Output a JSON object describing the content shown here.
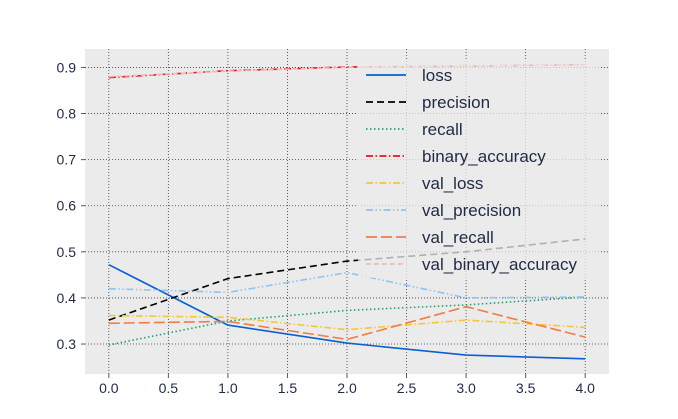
{
  "chart_data": {
    "type": "line",
    "title": "",
    "xlabel": "",
    "ylabel": "",
    "xlim": [
      -0.2,
      4.2
    ],
    "ylim": [
      0.235,
      0.94
    ],
    "x": [
      0.0,
      1.0,
      2.0,
      3.0,
      4.0
    ],
    "xticks": [
      0.0,
      0.5,
      1.0,
      1.5,
      2.0,
      2.5,
      3.0,
      3.5,
      4.0
    ],
    "xtick_labels": [
      "0.0",
      "0.5",
      "1.0",
      "1.5",
      "2.0",
      "2.5",
      "3.0",
      "3.5",
      "4.0"
    ],
    "yticks": [
      0.3,
      0.4,
      0.5,
      0.6,
      0.7,
      0.8,
      0.9
    ],
    "ytick_labels": [
      "0.3",
      "0.4",
      "0.5",
      "0.6",
      "0.7",
      "0.8",
      "0.9"
    ],
    "grid": true,
    "legend_position": "upper-right",
    "background_color": "#ebebeb",
    "series": [
      {
        "name": "loss",
        "color": "#0a5fd1",
        "dash": "solid",
        "values": [
          0.472,
          0.341,
          0.302,
          0.276,
          0.268
        ]
      },
      {
        "name": "precision",
        "color": "#000000",
        "dash": "dashed",
        "values": [
          0.352,
          0.442,
          0.48,
          0.5,
          0.528
        ]
      },
      {
        "name": "recall",
        "color": "#1aa56c",
        "dash": "dotted",
        "values": [
          0.298,
          0.35,
          0.373,
          0.385,
          0.402
        ]
      },
      {
        "name": "binary_accuracy",
        "color": "#e8141a",
        "dash": "dashdot",
        "values": [
          0.878,
          0.893,
          0.901,
          0.903,
          0.906
        ]
      },
      {
        "name": "val_loss",
        "color": "#f5c833",
        "dash": "dashdot",
        "values": [
          0.362,
          0.358,
          0.331,
          0.352,
          0.336
        ]
      },
      {
        "name": "val_precision",
        "color": "#8cc4f2",
        "dash": "dashdotdot",
        "values": [
          0.42,
          0.412,
          0.455,
          0.4,
          0.402
        ]
      },
      {
        "name": "val_recall",
        "color": "#f07c45",
        "dash": "longdash",
        "values": [
          0.345,
          0.349,
          0.31,
          0.381,
          0.315
        ]
      },
      {
        "name": "val_binary_accuracy",
        "color": "#f2b9b9",
        "dash": "densedash",
        "values": [
          0.88,
          0.892,
          0.9,
          0.903,
          0.905
        ]
      }
    ]
  }
}
